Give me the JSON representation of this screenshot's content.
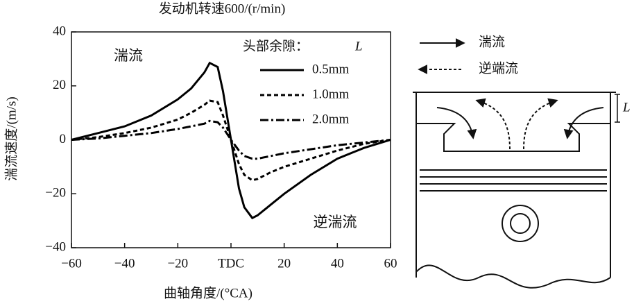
{
  "chart_data": {
    "type": "line",
    "title": "发动机转速600/(r/min)",
    "x_label": "曲轴角度/(°CA)",
    "y_label": "湍流速度/(m/s)",
    "annotations": [
      "湍流",
      "逆湍流"
    ],
    "legend_title": "头部余隙：",
    "legend_title_var": "L",
    "legend": "upper right",
    "grid": false,
    "x": [
      -60,
      -50,
      -40,
      -30,
      -20,
      -15,
      -10,
      -8,
      -5,
      -3,
      0,
      3,
      5,
      8,
      10,
      15,
      20,
      30,
      40,
      50,
      60
    ],
    "series": [
      {
        "name": "0.5mm",
        "color": "#000000",
        "dash": "solid",
        "values": [
          0,
          2.5,
          5,
          9,
          15,
          19,
          25,
          28.5,
          27,
          18,
          0,
          -18,
          -25,
          -29,
          -28,
          -24,
          -20,
          -13,
          -7,
          -3,
          0
        ]
      },
      {
        "name": "1.0mm",
        "color": "#000000",
        "dash": "dashed",
        "values": [
          0,
          1,
          2.5,
          4.5,
          7.5,
          10,
          13,
          14.5,
          14,
          9,
          0,
          -9,
          -13,
          -15,
          -14.5,
          -12,
          -10,
          -7,
          -4,
          -1.5,
          0
        ]
      },
      {
        "name": "2.0mm",
        "color": "#000000",
        "dash": "dashdot",
        "values": [
          0,
          0.5,
          1.5,
          2.5,
          4,
          5,
          6,
          7,
          6.5,
          4.5,
          0,
          -4,
          -6,
          -7,
          -7,
          -6,
          -5,
          -3.5,
          -2,
          -1,
          0
        ]
      }
    ],
    "xlim": [
      -60,
      60
    ],
    "xticks": [
      {
        "value": -60,
        "label": "−60"
      },
      {
        "value": -40,
        "label": "−40"
      },
      {
        "value": -20,
        "label": "−20"
      },
      {
        "value": 0,
        "label": "TDC"
      },
      20,
      40,
      60
    ],
    "ylim": [
      -40,
      40
    ],
    "yticks": [
      {
        "value": -40,
        "label": "−40"
      },
      {
        "value": -20,
        "label": "−20"
      },
      0,
      20,
      40
    ]
  },
  "diagram": {
    "legend": [
      "湍流",
      "逆端流"
    ],
    "gap_label": "L"
  }
}
